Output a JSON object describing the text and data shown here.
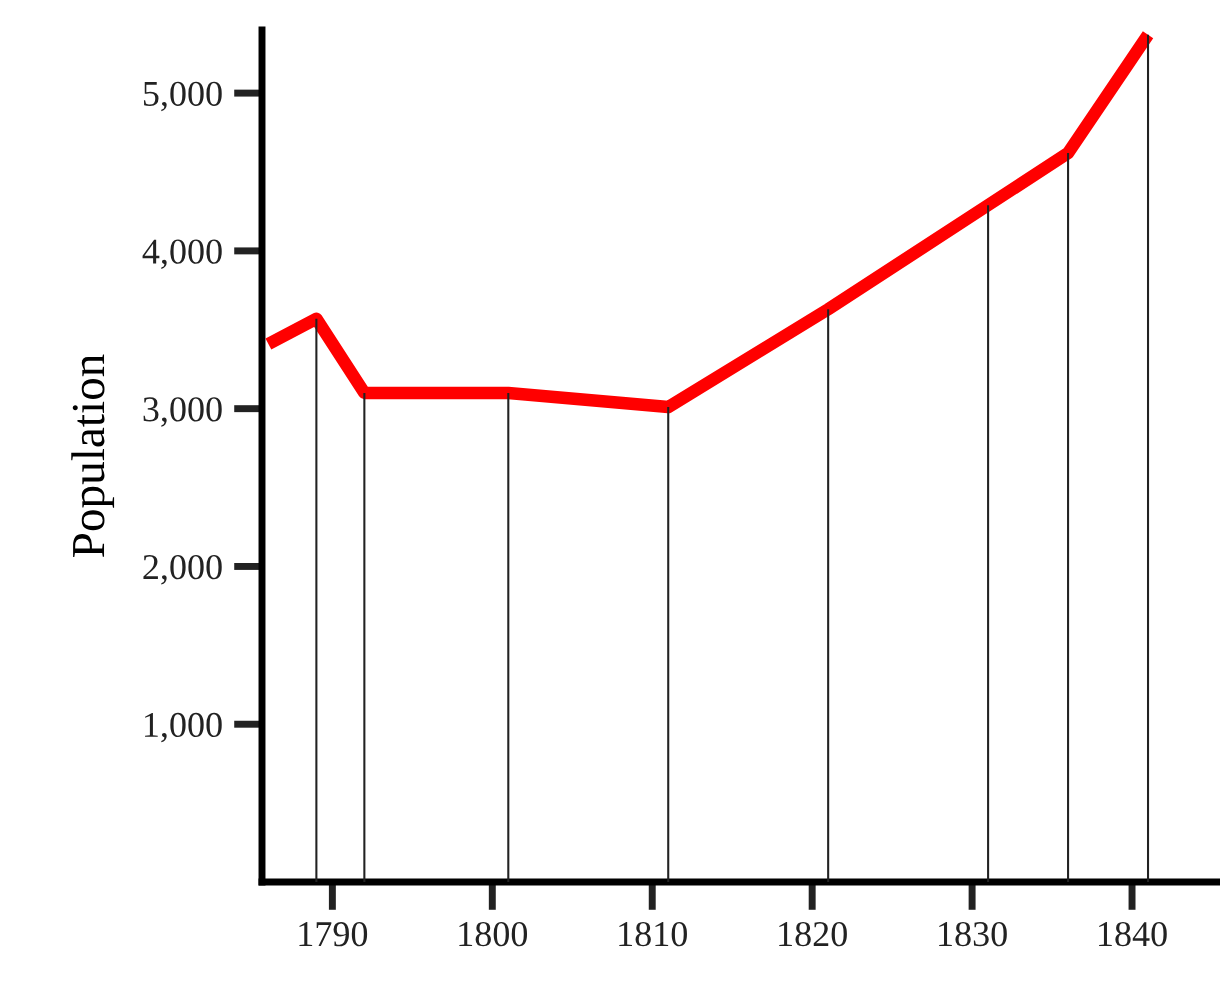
{
  "chart_data": {
    "type": "line",
    "ylabel": "Population",
    "x": [
      1786,
      1789,
      1792,
      1801,
      1811,
      1821,
      1831,
      1836,
      1841
    ],
    "series": [
      {
        "type": "bar",
        "color": "#222222",
        "values": [
          null,
          3570,
          3100,
          3100,
          3010,
          3630,
          4290,
          4620,
          5370
        ]
      },
      {
        "color": "#ff0000",
        "values": [
          3410,
          3570,
          3100,
          3100,
          3010,
          3630,
          4290,
          4620,
          5370
        ]
      }
    ],
    "xlim": [
      1785.6,
      1845.5
    ],
    "ylim": [
      0,
      5400
    ],
    "xticks": [
      1790,
      1800,
      1810,
      1820,
      1830,
      1840
    ],
    "yticks": [
      {
        "value": 1000,
        "label": "1,000"
      },
      {
        "value": 2000,
        "label": "2,000"
      },
      {
        "value": 3000,
        "label": "3,000"
      },
      {
        "value": 4000,
        "label": "4,000"
      },
      {
        "value": 5000,
        "label": "5,000"
      }
    ],
    "grid": false,
    "legend": false,
    "marker": "none",
    "line_style": "solid"
  }
}
